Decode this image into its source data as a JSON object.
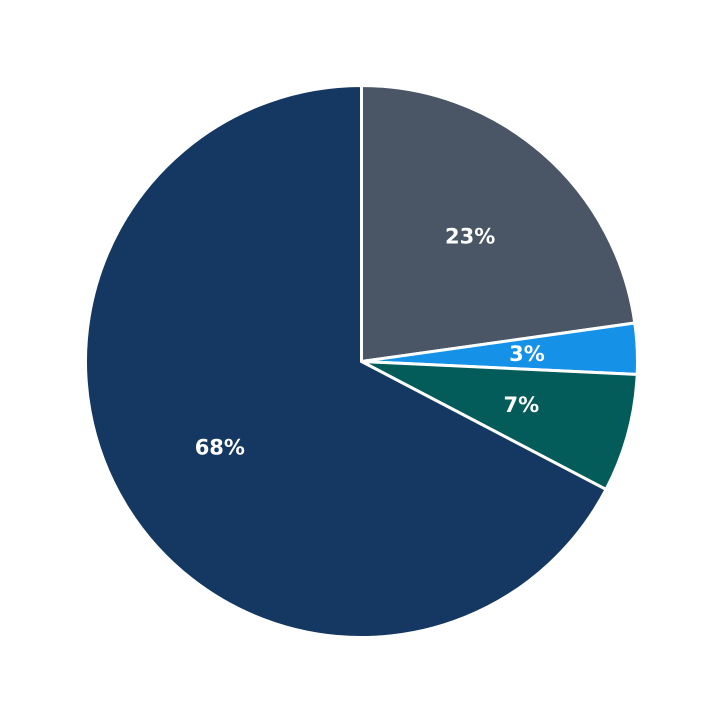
{
  "chart_data": {
    "type": "pie",
    "title": "",
    "legend": "none",
    "start_angle_deg": 90,
    "direction": "clockwise",
    "slices": [
      {
        "label": "23%",
        "value": 23,
        "color": "#4a5565"
      },
      {
        "label": "3%",
        "value": 3,
        "color": "#1591e8"
      },
      {
        "label": "7%",
        "value": 7,
        "color": "#035c59"
      },
      {
        "label": "68%",
        "value": 68,
        "color": "#143861"
      }
    ]
  }
}
